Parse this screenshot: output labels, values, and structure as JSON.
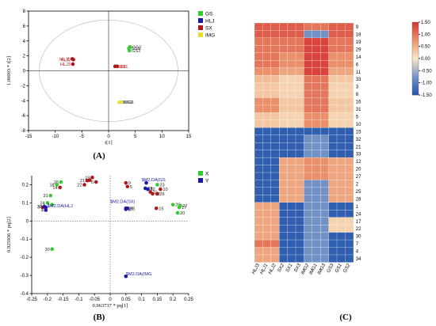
{
  "chart_data": [
    {
      "panel": "(A)",
      "type": "scatter",
      "xlabel": "t[1]",
      "ylabel": "1.00003 * t[2]",
      "xlim": [
        -15,
        15
      ],
      "ylim": [
        -8,
        8
      ],
      "xticks": [
        "-15",
        "-10",
        "-5",
        "0",
        "5",
        "10",
        "15"
      ],
      "yticks": [
        "8",
        "6",
        "4",
        "2",
        "0",
        "-2",
        "-4",
        "-6",
        "-8"
      ],
      "series": [
        {
          "name": "GS",
          "color": "#33cc33",
          "points": [
            {
              "label": "GS1",
              "x": 3.8,
              "y": 3.0
            },
            {
              "label": "GS3",
              "x": 4.0,
              "y": 3.2
            },
            {
              "label": "GS2",
              "x": 3.9,
              "y": 2.7
            }
          ]
        },
        {
          "name": "HLJ",
          "color": "#1a1aa6",
          "points": []
        },
        {
          "name": "SX",
          "color": "#b01818",
          "points": [
            {
              "label": "HLJ1",
              "x": -6.8,
              "y": 1.6
            },
            {
              "label": "HLJ2",
              "x": -6.6,
              "y": 1.5
            },
            {
              "label": "HLJ3",
              "x": -6.7,
              "y": 0.9
            },
            {
              "label": "SX3",
              "x": 1.2,
              "y": 0.6
            },
            {
              "label": "SX1",
              "x": 1.6,
              "y": 0.6
            }
          ]
        },
        {
          "name": "IMG",
          "color": "#e8e02a",
          "points": [
            {
              "label": "IMG3",
              "x": 2.0,
              "y": -4.2
            },
            {
              "label": "IMG1",
              "x": 2.3,
              "y": -4.2
            }
          ]
        }
      ]
    },
    {
      "panel": "(B)",
      "type": "scatter",
      "xlabel": "0.963737 * pq[1]",
      "ylabel": "0.925936 * pq[2]",
      "xlim": [
        -0.25,
        0.25
      ],
      "ylim": [
        -0.4,
        0.25
      ],
      "xticks": [
        "-0.25",
        "-0.2",
        "-0.15",
        "-0.1",
        "-0.05",
        "0",
        "0.05",
        "0.1",
        "0.15",
        "0.2",
        "0.25"
      ],
      "yticks": [
        "0.2",
        "0.1",
        "0",
        "-0.1",
        "-0.2",
        "-0.3",
        "-0.4"
      ],
      "legend": [
        {
          "name": "X",
          "color": "#33cc33"
        },
        {
          "name": "Y",
          "color": "#1a1aa6"
        }
      ],
      "points": [
        {
          "label": "3",
          "x": -0.065,
          "y": 0.225,
          "color": "#b01818"
        },
        {
          "label": "19",
          "x": -0.057,
          "y": 0.24,
          "color": "#b01818"
        },
        {
          "label": "16",
          "x": -0.157,
          "y": 0.215,
          "color": "#33cc33"
        },
        {
          "label": "18",
          "x": -0.17,
          "y": 0.2,
          "color": "#33cc33"
        },
        {
          "label": "14",
          "x": -0.16,
          "y": 0.185,
          "color": "#b01818"
        },
        {
          "label": "21",
          "x": -0.073,
          "y": 0.223,
          "color": "#b01818"
        },
        {
          "label": "22",
          "x": -0.082,
          "y": 0.2,
          "color": "#b01818"
        },
        {
          "label": "6",
          "x": -0.045,
          "y": 0.215,
          "color": "#b01818"
        },
        {
          "label": "31",
          "x": -0.19,
          "y": 0.14,
          "color": "#33cc33"
        },
        {
          "label": "24",
          "x": -0.2,
          "y": 0.1,
          "color": "#33cc33"
        },
        {
          "label": "1",
          "x": -0.185,
          "y": 0.09,
          "color": "#33cc33"
        },
        {
          "label": "7",
          "x": -0.215,
          "y": 0.075,
          "color": "#b01818"
        },
        {
          "label": "4",
          "x": -0.205,
          "y": 0.06,
          "color": "#1a1aa6"
        },
        {
          "label": "33",
          "x": -0.21,
          "y": 0.08,
          "color": "#1a1aa6"
        },
        {
          "label": "9",
          "x": 0.05,
          "y": 0.21,
          "color": "#b01818"
        },
        {
          "label": "5",
          "x": 0.055,
          "y": 0.19,
          "color": "#b01818"
        },
        {
          "label": "23",
          "x": 0.15,
          "y": 0.2,
          "color": "#33cc33"
        },
        {
          "label": "10",
          "x": 0.16,
          "y": 0.175,
          "color": "#b01818"
        },
        {
          "label": "11",
          "x": 0.128,
          "y": 0.16,
          "color": "#b01818"
        },
        {
          "label": "12",
          "x": 0.135,
          "y": 0.15,
          "color": "#b01818"
        },
        {
          "label": "26",
          "x": 0.15,
          "y": 0.15,
          "color": "#b01818"
        },
        {
          "label": "28",
          "x": 0.112,
          "y": 0.18,
          "color": "#1a1aa6"
        },
        {
          "label": "32",
          "x": 0.12,
          "y": 0.175,
          "color": "#1a1aa6"
        },
        {
          "label": "29",
          "x": 0.2,
          "y": 0.09,
          "color": "#33cc33"
        },
        {
          "label": "17",
          "x": 0.22,
          "y": 0.075,
          "color": "#33cc33"
        },
        {
          "label": "27",
          "x": 0.223,
          "y": 0.085,
          "color": "#33cc33"
        },
        {
          "label": "20",
          "x": 0.215,
          "y": 0.045,
          "color": "#33cc33"
        },
        {
          "label": "15",
          "x": 0.147,
          "y": 0.07,
          "color": "#b01818"
        },
        {
          "label": "25",
          "x": 0.05,
          "y": 0.07,
          "color": "#1a1aa6"
        },
        {
          "label": "2",
          "x": 0.05,
          "y": 0.065,
          "color": "#1a1aa6"
        },
        {
          "label": "28",
          "x": 0.055,
          "y": 0.07,
          "color": "#1a1aa6"
        },
        {
          "label": "30",
          "x": -0.185,
          "y": -0.155,
          "color": "#33cc33"
        }
      ],
      "annotations": [
        {
          "text": "$M2.DA(HLJ",
          "x": -0.2,
          "y": 0.075,
          "color": "#1a1aa6"
        },
        {
          "text": "$M2.DA(SX)",
          "x": 0.0,
          "y": 0.1,
          "color": "#1a1aa6"
        },
        {
          "text": "$M2.DA(GS",
          "x": 0.1,
          "y": 0.22,
          "color": "#1a1aa6"
        },
        {
          "text": "$M2.DA(IMG",
          "x": 0.05,
          "y": -0.3,
          "color": "#1a1aa6"
        }
      ],
      "anchors": [
        {
          "x": -0.205,
          "y": 0.075,
          "color": "#1a1aa6"
        },
        {
          "x": 0.05,
          "y": 0.065,
          "color": "#1a1aa6"
        },
        {
          "x": 0.115,
          "y": 0.21,
          "color": "#1a1aa6"
        },
        {
          "x": 0.05,
          "y": -0.305,
          "color": "#1a1aa6"
        }
      ]
    },
    {
      "panel": "(C)",
      "type": "heatmap",
      "columns": [
        "HLJ3",
        "HLJ1",
        "HLJ2",
        "SX2",
        "SX1",
        "SX3",
        "IMG2",
        "IMG1",
        "IMG3",
        "GS3",
        "GS1",
        "GS2"
      ],
      "rows": [
        "9",
        "18",
        "19",
        "29",
        "14",
        "6",
        "11",
        "33",
        "3",
        "8",
        "16",
        "31",
        "5",
        "10",
        "15",
        "32",
        "21",
        "33",
        "12",
        "20",
        "27",
        "2",
        "25",
        "28",
        "1",
        "24",
        "17",
        "22",
        "30",
        "7",
        "4",
        "34"
      ],
      "colorbar": {
        "min": -1.5,
        "max": 1.5,
        "ticks": [
          "1.50",
          "1.00",
          "0.50",
          "0.00",
          "-0.50",
          "-1.00",
          "-1.50"
        ]
      },
      "values": [
        [
          1.2,
          1.2,
          1.2,
          1.2,
          1.2,
          1.2,
          1.0,
          1.0,
          1.0,
          1.2,
          1.2,
          1.2
        ],
        [
          1.2,
          1.2,
          1.2,
          1.2,
          1.2,
          1.2,
          -0.8,
          -0.8,
          -0.8,
          1.2,
          1.2,
          1.2
        ],
        [
          1.0,
          1.0,
          1.0,
          1.0,
          1.0,
          1.0,
          1.4,
          1.4,
          1.4,
          1.0,
          1.0,
          1.0
        ],
        [
          1.0,
          1.0,
          1.0,
          1.0,
          1.0,
          1.0,
          1.4,
          1.4,
          1.4,
          1.0,
          1.0,
          1.0
        ],
        [
          1.0,
          1.0,
          1.0,
          0.8,
          0.8,
          0.8,
          1.4,
          1.4,
          1.4,
          0.8,
          0.8,
          0.8
        ],
        [
          1.0,
          1.0,
          1.0,
          0.8,
          0.8,
          0.8,
          1.4,
          1.4,
          1.4,
          0.8,
          0.8,
          0.8
        ],
        [
          0.8,
          0.8,
          0.8,
          0.6,
          0.6,
          0.6,
          1.4,
          1.4,
          1.4,
          0.6,
          0.6,
          0.6
        ],
        [
          0.4,
          0.4,
          0.4,
          0.2,
          0.2,
          0.2,
          1.0,
          1.0,
          1.0,
          0.3,
          0.3,
          0.3
        ],
        [
          0.3,
          0.3,
          0.3,
          0.2,
          0.2,
          0.2,
          1.0,
          1.0,
          1.0,
          0.2,
          0.2,
          0.2
        ],
        [
          0.3,
          0.3,
          0.3,
          0.2,
          0.2,
          0.2,
          1.0,
          1.0,
          1.0,
          0.2,
          0.2,
          0.2
        ],
        [
          0.8,
          0.8,
          0.8,
          0.3,
          0.3,
          0.3,
          1.0,
          1.0,
          1.0,
          0.3,
          0.3,
          0.3
        ],
        [
          0.8,
          0.8,
          0.8,
          0.3,
          0.3,
          0.3,
          1.0,
          1.0,
          1.0,
          0.3,
          0.3,
          0.3
        ],
        [
          0.3,
          0.3,
          0.3,
          0.2,
          0.2,
          0.2,
          0.8,
          0.8,
          0.8,
          0.2,
          0.2,
          0.2
        ],
        [
          0.3,
          0.3,
          0.3,
          0.2,
          0.2,
          0.2,
          0.8,
          0.8,
          0.8,
          0.2,
          0.2,
          0.2
        ],
        [
          -1.4,
          -1.4,
          -1.4,
          -1.4,
          -1.4,
          -1.4,
          -1.4,
          -1.4,
          -1.4,
          -1.4,
          -1.4,
          -1.4
        ],
        [
          -1.4,
          -1.4,
          -1.4,
          -1.4,
          -1.4,
          -1.4,
          -0.8,
          -0.8,
          -0.8,
          -1.4,
          -1.4,
          -1.4
        ],
        [
          -1.4,
          -1.4,
          -1.4,
          -1.4,
          -1.4,
          -1.4,
          -0.8,
          -0.8,
          -0.8,
          -1.4,
          -1.4,
          -1.4
        ],
        [
          -1.4,
          -1.4,
          -1.4,
          -1.4,
          -1.4,
          -1.4,
          -0.8,
          -0.8,
          -0.8,
          -1.4,
          -1.4,
          -1.4
        ],
        [
          -1.4,
          -1.4,
          -1.4,
          0.6,
          0.6,
          0.6,
          0.8,
          0.8,
          0.8,
          0.6,
          0.6,
          0.6
        ],
        [
          -1.4,
          -1.4,
          -1.4,
          0.6,
          0.6,
          0.6,
          0.8,
          0.8,
          0.8,
          0.6,
          0.6,
          0.6
        ],
        [
          -1.4,
          -1.4,
          -1.4,
          0.6,
          0.6,
          0.6,
          0.8,
          0.8,
          0.8,
          0.6,
          0.6,
          0.6
        ],
        [
          -1.4,
          -1.4,
          -1.4,
          0.6,
          0.6,
          0.6,
          -0.8,
          -0.8,
          -0.8,
          0.6,
          0.6,
          0.6
        ],
        [
          -1.4,
          -1.4,
          -1.4,
          0.6,
          0.6,
          0.6,
          -0.8,
          -0.8,
          -0.8,
          0.6,
          0.6,
          0.6
        ],
        [
          -1.4,
          -1.4,
          -1.4,
          0.6,
          0.6,
          0.6,
          -0.8,
          -0.8,
          -0.8,
          0.6,
          0.6,
          0.6
        ],
        [
          0.6,
          0.6,
          0.6,
          -1.4,
          -1.4,
          -1.4,
          -0.8,
          -0.8,
          -0.8,
          -1.4,
          -1.4,
          -1.4
        ],
        [
          0.6,
          0.6,
          0.6,
          -1.4,
          -1.4,
          -1.4,
          -0.8,
          -0.8,
          -0.8,
          -1.4,
          -1.4,
          -1.4
        ],
        [
          0.6,
          0.6,
          0.6,
          -1.4,
          -1.4,
          -1.4,
          -0.8,
          -0.8,
          -0.8,
          0.2,
          0.2,
          0.2
        ],
        [
          0.6,
          0.6,
          0.6,
          -1.4,
          -1.4,
          -1.4,
          -0.8,
          -0.8,
          -0.8,
          0.2,
          0.2,
          0.2
        ],
        [
          0.6,
          0.6,
          0.6,
          -1.4,
          -1.4,
          -1.4,
          -0.8,
          -0.8,
          -0.8,
          -1.4,
          -1.4,
          -1.4
        ],
        [
          1.0,
          1.0,
          1.0,
          -1.4,
          -1.4,
          -1.4,
          -0.8,
          -0.8,
          -0.8,
          -1.4,
          -1.4,
          -1.4
        ],
        [
          0.6,
          0.6,
          0.6,
          -1.4,
          -1.4,
          -1.4,
          -0.8,
          -0.8,
          -0.8,
          -1.4,
          -1.4,
          -1.4
        ],
        [
          0.6,
          0.6,
          0.6,
          -1.4,
          -1.4,
          -1.4,
          -0.8,
          -0.8,
          -0.8,
          -1.4,
          -1.4,
          -1.4
        ]
      ]
    }
  ]
}
